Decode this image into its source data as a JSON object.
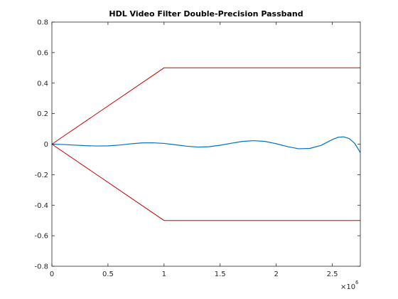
{
  "chart_data": {
    "type": "line",
    "title": "HDL Video Filter Double-Precision Passband",
    "xlabel": "",
    "ylabel": "",
    "x_exponent_label": "×10",
    "x_exponent": "6",
    "xlim": [
      0,
      2750000
    ],
    "ylim": [
      -0.8,
      0.8
    ],
    "x_ticks": [
      0,
      500000,
      1000000,
      1500000,
      2000000,
      2500000
    ],
    "x_tick_labels": [
      "0",
      "0.5",
      "1",
      "1.5",
      "2",
      "2.5"
    ],
    "y_ticks": [
      -0.8,
      -0.6,
      -0.4,
      -0.2,
      0,
      0.2,
      0.4,
      0.6,
      0.8
    ],
    "y_tick_labels": [
      "-0.8",
      "-0.6",
      "-0.4",
      "-0.2",
      "0",
      "0.2",
      "0.4",
      "0.6",
      "0.8"
    ],
    "grid": false,
    "legend": "none",
    "series": [
      {
        "color": "#0072bd",
        "x": [
          0,
          100000,
          200000,
          300000,
          400000,
          500000,
          600000,
          700000,
          800000,
          900000,
          1000000,
          1100000,
          1200000,
          1300000,
          1400000,
          1500000,
          1600000,
          1700000,
          1800000,
          1900000,
          2000000,
          2100000,
          2200000,
          2300000,
          2400000,
          2500000,
          2550000,
          2600000,
          2650000,
          2700000,
          2750000
        ],
        "y": [
          0.0,
          -0.002,
          -0.006,
          -0.01,
          -0.012,
          -0.011,
          -0.006,
          0.002,
          0.008,
          0.009,
          0.005,
          -0.004,
          -0.013,
          -0.019,
          -0.017,
          -0.007,
          0.006,
          0.018,
          0.023,
          0.018,
          0.003,
          -0.016,
          -0.03,
          -0.028,
          -0.008,
          0.03,
          0.045,
          0.048,
          0.037,
          0.005,
          -0.055
        ]
      },
      {
        "color": "#cc0000",
        "x": [
          0,
          1000000,
          2750000
        ],
        "y": [
          0,
          0.5,
          0.5
        ]
      },
      {
        "color": "#cc0000",
        "x": [
          0,
          1000000,
          2750000
        ],
        "y": [
          0,
          -0.5,
          -0.5
        ]
      }
    ]
  }
}
